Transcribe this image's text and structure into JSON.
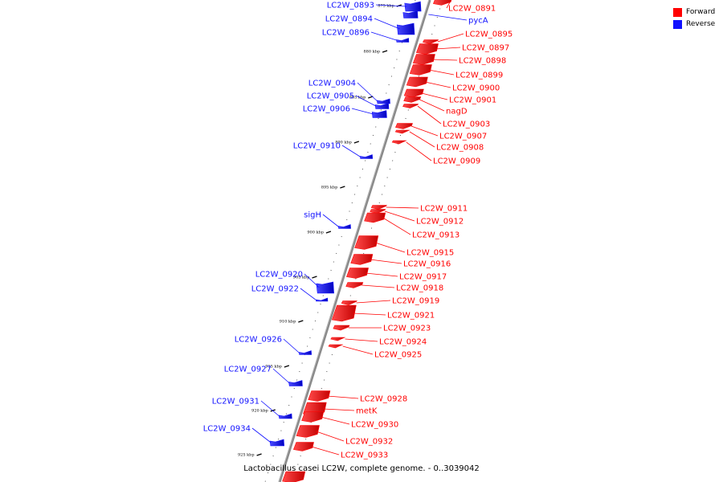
{
  "legend": {
    "forward_label": "Forward",
    "reverse_label": "Reverse",
    "forward_color": "#ff0000",
    "reverse_color": "#1010ff"
  },
  "caption": "Lactobacillus casei LC2W, complete genome. - 0..3039042",
  "scale_ticks": [
    "875 kbp",
    "880 kbp",
    "885 kbp",
    "890 kbp",
    "895 kbp",
    "900 kbp",
    "905 kbp",
    "910 kbp",
    "915 kbp",
    "920 kbp",
    "925 kbp"
  ],
  "genes_forward": [
    "LC2W_0891",
    "LC2W_0895",
    "LC2W_0897",
    "LC2W_0898",
    "LC2W_0899",
    "LC2W_0900",
    "LC2W_0901",
    "nagD",
    "LC2W_0903",
    "LC2W_0907",
    "LC2W_0908",
    "LC2W_0909",
    "LC2W_0911",
    "LC2W_0912",
    "LC2W_0913",
    "LC2W_0915",
    "LC2W_0916",
    "LC2W_0917",
    "LC2W_0918",
    "LC2W_0919",
    "LC2W_0921",
    "LC2W_0923",
    "LC2W_0924",
    "LC2W_0925",
    "LC2W_0928",
    "metK",
    "LC2W_0930",
    "LC2W_0932",
    "LC2W_0933"
  ],
  "genes_reverse": [
    "LC2W_0893",
    "pycA",
    "LC2W_0894",
    "LC2W_0896",
    "LC2W_0904",
    "LC2W_0905",
    "LC2W_0906",
    "LC2W_0910",
    "sigH",
    "LC2W_0920",
    "LC2W_0922",
    "LC2W_0926",
    "LC2W_0927",
    "LC2W_0931",
    "LC2W_0934"
  ]
}
